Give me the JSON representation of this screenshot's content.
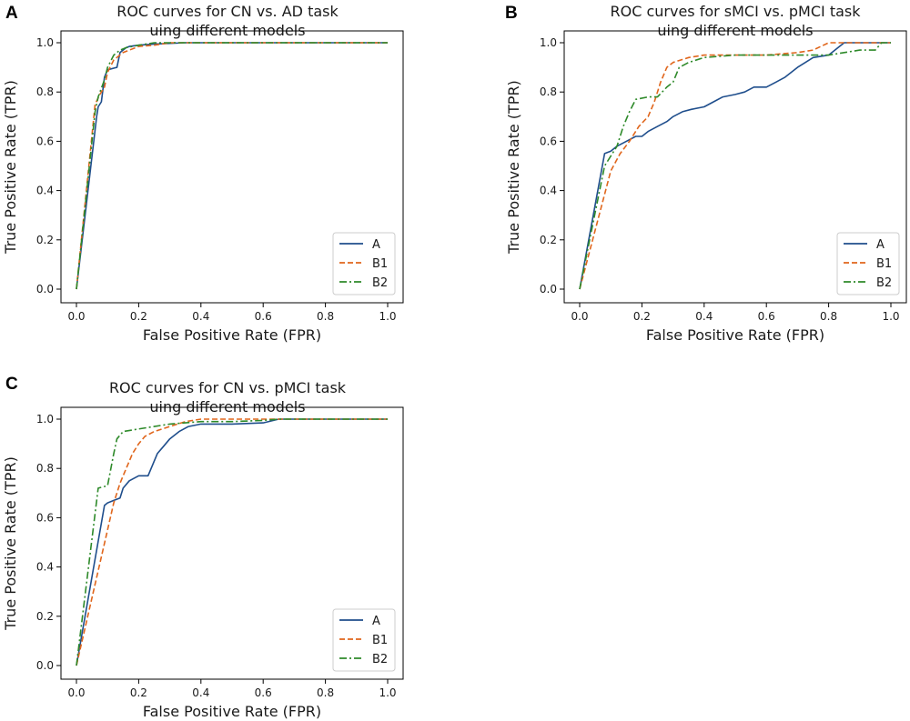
{
  "chart_data": [
    {
      "panel": "A",
      "type": "line",
      "title": "ROC curves for CN vs. AD task",
      "subtitle": "uing different models",
      "xlabel": "False Positive Rate (FPR)",
      "ylabel": "True Positive Rate (TPR)",
      "xlim": [
        0,
        1
      ],
      "ylim": [
        0,
        1
      ],
      "xticks": [
        "0.0",
        "0.2",
        "0.4",
        "0.6",
        "0.8",
        "1.0"
      ],
      "yticks": [
        "0.0",
        "0.2",
        "0.4",
        "0.6",
        "0.8",
        "1.0"
      ],
      "legend_position": "lower-right",
      "series": [
        {
          "name": "A",
          "color": "#1f4e8c",
          "dash": "",
          "x": [
            0,
            0.065,
            0.07,
            0.08,
            0.09,
            0.1,
            0.13,
            0.14,
            0.16,
            0.17,
            0.2,
            0.25,
            0.35,
            1.0
          ],
          "y": [
            0,
            0.7,
            0.74,
            0.76,
            0.86,
            0.89,
            0.9,
            0.96,
            0.98,
            0.985,
            0.99,
            0.995,
            1.0,
            1.0
          ]
        },
        {
          "name": "B1",
          "color": "#e0661c",
          "dash": "6,3",
          "x": [
            0,
            0.06,
            0.075,
            0.09,
            0.1,
            0.12,
            0.15,
            0.2,
            0.25,
            0.3,
            1.0
          ],
          "y": [
            0,
            0.75,
            0.79,
            0.82,
            0.88,
            0.93,
            0.96,
            0.985,
            0.99,
            1.0,
            1.0
          ]
        },
        {
          "name": "B2",
          "color": "#2e8a2a",
          "dash": "8,3,2,3",
          "x": [
            0,
            0.06,
            0.07,
            0.09,
            0.1,
            0.12,
            0.14,
            0.16,
            0.2,
            0.25,
            1.0
          ],
          "y": [
            0,
            0.72,
            0.78,
            0.85,
            0.9,
            0.95,
            0.97,
            0.98,
            0.99,
            1.0,
            1.0
          ]
        }
      ]
    },
    {
      "panel": "B",
      "type": "line",
      "title": "ROC curves for sMCI vs. pMCI task",
      "subtitle": "uing different models",
      "xlabel": "False Positive Rate (FPR)",
      "ylabel": "True Positive Rate (TPR)",
      "xlim": [
        0,
        1
      ],
      "ylim": [
        0,
        1
      ],
      "xticks": [
        "0.0",
        "0.2",
        "0.4",
        "0.6",
        "0.8",
        "1.0"
      ],
      "yticks": [
        "0.0",
        "0.2",
        "0.4",
        "0.6",
        "0.8",
        "1.0"
      ],
      "legend_position": "lower-right",
      "series": [
        {
          "name": "A",
          "color": "#1f4e8c",
          "dash": "",
          "x": [
            0,
            0.08,
            0.1,
            0.12,
            0.15,
            0.18,
            0.2,
            0.22,
            0.25,
            0.28,
            0.3,
            0.33,
            0.36,
            0.4,
            0.43,
            0.46,
            0.5,
            0.53,
            0.56,
            0.6,
            0.63,
            0.66,
            0.7,
            0.75,
            0.8,
            0.83,
            0.85,
            1.0
          ],
          "y": [
            0,
            0.55,
            0.56,
            0.58,
            0.6,
            0.62,
            0.62,
            0.64,
            0.66,
            0.68,
            0.7,
            0.72,
            0.73,
            0.74,
            0.76,
            0.78,
            0.79,
            0.8,
            0.82,
            0.82,
            0.84,
            0.86,
            0.9,
            0.94,
            0.95,
            0.98,
            1.0,
            1.0
          ]
        },
        {
          "name": "B1",
          "color": "#e0661c",
          "dash": "6,3",
          "x": [
            0,
            0.1,
            0.13,
            0.16,
            0.19,
            0.22,
            0.24,
            0.26,
            0.28,
            0.3,
            0.35,
            0.4,
            0.5,
            0.6,
            0.7,
            0.75,
            0.8,
            1.0
          ],
          "y": [
            0,
            0.48,
            0.55,
            0.6,
            0.66,
            0.7,
            0.76,
            0.84,
            0.9,
            0.92,
            0.94,
            0.95,
            0.95,
            0.95,
            0.96,
            0.97,
            1.0,
            1.0
          ]
        },
        {
          "name": "B2",
          "color": "#2e8a2a",
          "dash": "8,3,2,3",
          "x": [
            0,
            0.08,
            0.12,
            0.14,
            0.16,
            0.18,
            0.22,
            0.25,
            0.28,
            0.3,
            0.32,
            0.35,
            0.4,
            0.5,
            0.6,
            0.7,
            0.8,
            0.85,
            0.9,
            0.95,
            0.97,
            1.0
          ],
          "y": [
            0,
            0.5,
            0.58,
            0.66,
            0.72,
            0.77,
            0.78,
            0.78,
            0.82,
            0.84,
            0.9,
            0.92,
            0.94,
            0.95,
            0.95,
            0.95,
            0.95,
            0.96,
            0.97,
            0.97,
            1.0,
            1.0
          ]
        }
      ]
    },
    {
      "panel": "C",
      "type": "line",
      "title": "ROC curves for CN vs. pMCI task",
      "subtitle": "uing different models",
      "xlabel": "False Positive Rate (FPR)",
      "ylabel": "True Positive Rate (TPR)",
      "xlim": [
        0,
        1
      ],
      "ylim": [
        0,
        1
      ],
      "xticks": [
        "0.0",
        "0.2",
        "0.4",
        "0.6",
        "0.8",
        "1.0"
      ],
      "yticks": [
        "0.0",
        "0.2",
        "0.4",
        "0.6",
        "0.8",
        "1.0"
      ],
      "legend_position": "lower-right",
      "series": [
        {
          "name": "A",
          "color": "#1f4e8c",
          "dash": "",
          "x": [
            0,
            0.09,
            0.1,
            0.12,
            0.14,
            0.15,
            0.17,
            0.2,
            0.23,
            0.24,
            0.26,
            0.28,
            0.3,
            0.33,
            0.36,
            0.4,
            0.5,
            0.6,
            0.65,
            1.0
          ],
          "y": [
            0,
            0.65,
            0.66,
            0.67,
            0.68,
            0.72,
            0.75,
            0.77,
            0.77,
            0.8,
            0.86,
            0.89,
            0.92,
            0.95,
            0.97,
            0.98,
            0.98,
            0.985,
            1.0,
            1.0
          ]
        },
        {
          "name": "B1",
          "color": "#e0661c",
          "dash": "6,3",
          "x": [
            0,
            0.12,
            0.14,
            0.16,
            0.18,
            0.2,
            0.22,
            0.25,
            0.3,
            0.35,
            0.4,
            1.0
          ],
          "y": [
            0,
            0.66,
            0.74,
            0.8,
            0.86,
            0.9,
            0.93,
            0.95,
            0.97,
            0.99,
            1.0,
            1.0
          ]
        },
        {
          "name": "B2",
          "color": "#2e8a2a",
          "dash": "8,3,2,3",
          "x": [
            0,
            0.07,
            0.1,
            0.12,
            0.13,
            0.15,
            0.2,
            0.25,
            0.3,
            0.4,
            0.5,
            0.6,
            0.65,
            1.0
          ],
          "y": [
            0,
            0.72,
            0.73,
            0.86,
            0.92,
            0.95,
            0.96,
            0.97,
            0.98,
            0.99,
            0.99,
            0.995,
            1.0,
            1.0
          ]
        }
      ]
    }
  ]
}
